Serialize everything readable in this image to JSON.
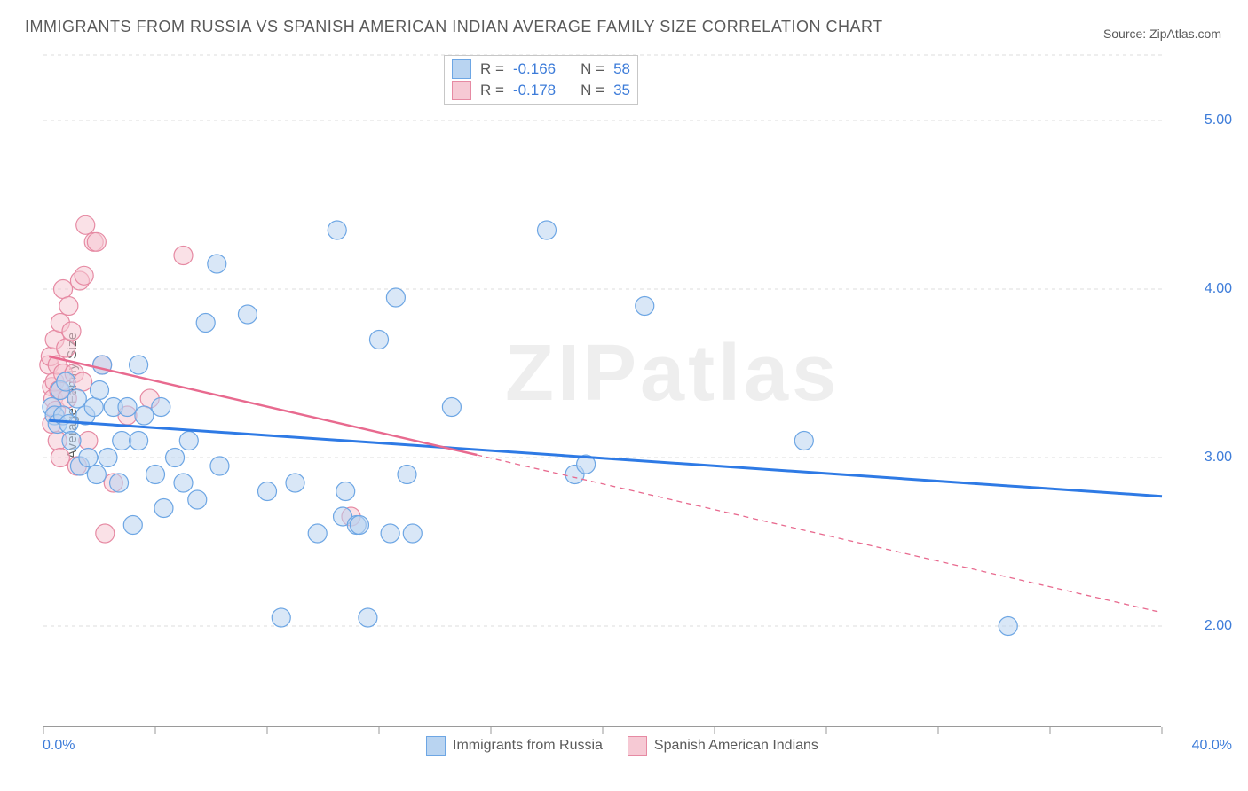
{
  "title": "IMMIGRANTS FROM RUSSIA VS SPANISH AMERICAN INDIAN AVERAGE FAMILY SIZE CORRELATION CHART",
  "source": "Source: ZipAtlas.com",
  "ylabel": "Average Family Size",
  "watermark": "ZIPatlas",
  "chart": {
    "type": "scatter",
    "background_color": "#ffffff",
    "grid_color": "#dcdcdc",
    "axis_color": "#9a9a9a",
    "marker_radius": 10.5,
    "marker_opacity": 0.55,
    "xlim": [
      0,
      40
    ],
    "ylim": [
      1.4,
      5.4
    ],
    "y_ticks": [
      2.0,
      3.0,
      4.0,
      5.0
    ],
    "y_tick_labels": [
      "2.00",
      "3.00",
      "4.00",
      "5.00"
    ],
    "x_minor_ticks": [
      0,
      4,
      8,
      12,
      16,
      20,
      24,
      28,
      32,
      36,
      40
    ],
    "x_tick_labels_left": "0.0%",
    "x_tick_labels_right": "40.0%",
    "series": [
      {
        "name": "Immigrants from Russia",
        "legend_label": "Immigrants from Russia",
        "fill_color": "#b9d4f1",
        "stroke_color": "#6da6e4",
        "R_label": "R =",
        "R_value": "-0.166",
        "N_label": "N =",
        "N_value": "58",
        "trend": {
          "x1": 0.2,
          "y1": 3.22,
          "x2": 40,
          "y2": 2.77,
          "solid_to_x": 40,
          "color": "#2e7ae5",
          "width": 3
        },
        "points": [
          [
            0.3,
            3.3
          ],
          [
            0.4,
            3.25
          ],
          [
            0.5,
            3.2
          ],
          [
            0.6,
            3.4
          ],
          [
            0.7,
            3.25
          ],
          [
            0.8,
            3.45
          ],
          [
            0.9,
            3.2
          ],
          [
            1.0,
            3.1
          ],
          [
            1.2,
            3.35
          ],
          [
            1.3,
            2.95
          ],
          [
            1.5,
            3.25
          ],
          [
            1.6,
            3.0
          ],
          [
            1.8,
            3.3
          ],
          [
            1.9,
            2.9
          ],
          [
            2.0,
            3.4
          ],
          [
            2.1,
            3.55
          ],
          [
            2.3,
            3.0
          ],
          [
            2.5,
            3.3
          ],
          [
            2.7,
            2.85
          ],
          [
            2.8,
            3.1
          ],
          [
            3.0,
            3.3
          ],
          [
            3.2,
            2.6
          ],
          [
            3.4,
            3.1
          ],
          [
            3.6,
            3.25
          ],
          [
            3.4,
            3.55
          ],
          [
            4.0,
            2.9
          ],
          [
            4.2,
            3.3
          ],
          [
            4.3,
            2.7
          ],
          [
            4.7,
            3.0
          ],
          [
            5.0,
            2.85
          ],
          [
            5.2,
            3.1
          ],
          [
            5.5,
            2.75
          ],
          [
            5.8,
            3.8
          ],
          [
            6.2,
            4.15
          ],
          [
            6.3,
            2.95
          ],
          [
            7.3,
            3.85
          ],
          [
            8.0,
            2.8
          ],
          [
            8.5,
            2.05
          ],
          [
            9.0,
            2.85
          ],
          [
            9.8,
            2.55
          ],
          [
            10.5,
            4.35
          ],
          [
            10.7,
            2.65
          ],
          [
            10.8,
            2.8
          ],
          [
            11.2,
            2.6
          ],
          [
            11.3,
            2.6
          ],
          [
            11.6,
            2.05
          ],
          [
            12.0,
            3.7
          ],
          [
            12.4,
            2.55
          ],
          [
            12.6,
            3.95
          ],
          [
            13.0,
            2.9
          ],
          [
            13.2,
            2.55
          ],
          [
            14.6,
            3.3
          ],
          [
            18.0,
            4.35
          ],
          [
            19.0,
            2.9
          ],
          [
            19.4,
            2.96
          ],
          [
            21.5,
            3.9
          ],
          [
            27.2,
            3.1
          ],
          [
            34.5,
            2.0
          ]
        ]
      },
      {
        "name": "Spanish American Indians",
        "legend_label": "Spanish American Indians",
        "fill_color": "#f6c9d4",
        "stroke_color": "#e68aa3",
        "R_label": "R =",
        "R_value": "-0.178",
        "N_label": "N =",
        "N_value": "35",
        "trend": {
          "x1": 0.2,
          "y1": 3.6,
          "x2": 40,
          "y2": 2.08,
          "solid_to_x": 15.5,
          "color": "#e86a8f",
          "width": 2.5
        },
        "points": [
          [
            0.2,
            3.55
          ],
          [
            0.25,
            3.6
          ],
          [
            0.3,
            3.42
          ],
          [
            0.3,
            3.2
          ],
          [
            0.35,
            3.35
          ],
          [
            0.4,
            3.7
          ],
          [
            0.4,
            3.45
          ],
          [
            0.45,
            3.28
          ],
          [
            0.5,
            3.55
          ],
          [
            0.5,
            3.1
          ],
          [
            0.55,
            3.4
          ],
          [
            0.6,
            3.8
          ],
          [
            0.6,
            3.0
          ],
          [
            0.7,
            3.5
          ],
          [
            0.7,
            4.0
          ],
          [
            0.8,
            3.65
          ],
          [
            0.85,
            3.35
          ],
          [
            0.9,
            3.9
          ],
          [
            1.0,
            3.75
          ],
          [
            1.1,
            3.5
          ],
          [
            1.2,
            2.95
          ],
          [
            1.3,
            4.05
          ],
          [
            1.4,
            3.45
          ],
          [
            1.45,
            4.08
          ],
          [
            1.5,
            4.38
          ],
          [
            1.6,
            3.1
          ],
          [
            1.8,
            4.28
          ],
          [
            1.9,
            4.28
          ],
          [
            2.1,
            3.55
          ],
          [
            2.5,
            2.85
          ],
          [
            2.2,
            2.55
          ],
          [
            3.0,
            3.25
          ],
          [
            3.8,
            3.35
          ],
          [
            5.0,
            4.2
          ],
          [
            11.0,
            2.65
          ]
        ]
      }
    ]
  }
}
